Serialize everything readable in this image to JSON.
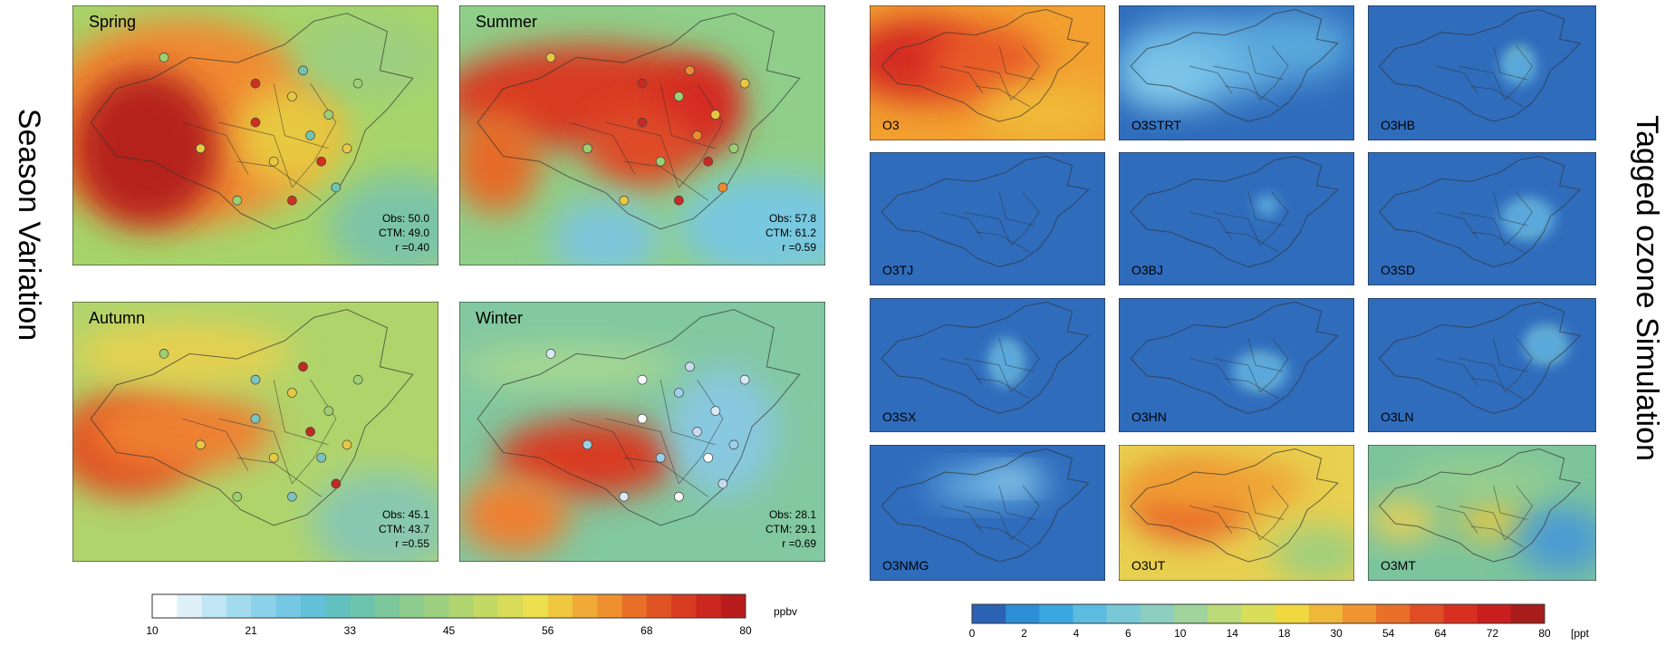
{
  "left": {
    "title": "Season Variation",
    "panels": [
      {
        "label": "Spring",
        "stats": [
          "Obs: 50.0",
          "CTM: 49.0",
          "r =0.40"
        ]
      },
      {
        "label": "Summer",
        "stats": [
          "Obs: 57.8",
          "CTM: 61.2",
          "r =0.59"
        ]
      },
      {
        "label": "Autumn",
        "stats": [
          "Obs: 45.1",
          "CTM: 43.7",
          "r =0.55"
        ]
      },
      {
        "label": "Winter",
        "stats": [
          "Obs: 28.1",
          "CTM: 29.1",
          "r =0.69"
        ]
      }
    ],
    "colorbar": {
      "ticks": [
        10,
        21,
        33,
        45,
        56,
        68,
        80
      ],
      "unit": "ppbv"
    }
  },
  "right": {
    "title": "Tagged ozone Simulation",
    "panels": [
      "O3",
      "O3STRT",
      "O3HB",
      "O3TJ",
      "O3BJ",
      "O3SD",
      "O3SX",
      "O3HN",
      "O3LN",
      "O3NMG",
      "O3UT",
      "O3MT"
    ],
    "colorbar": {
      "ticks": [
        0,
        2,
        4,
        6,
        10,
        14,
        18,
        30,
        54,
        64,
        72,
        80
      ],
      "unit": "[ppt"
    }
  }
}
